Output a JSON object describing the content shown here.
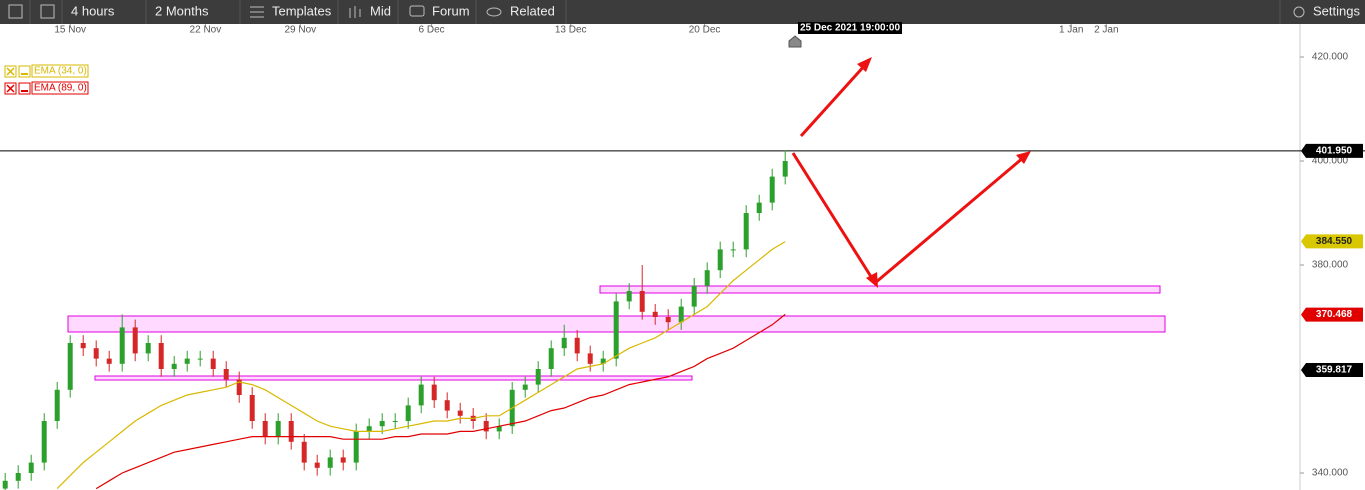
{
  "toolbar": {
    "interval": "4 hours",
    "range": "2 Months",
    "templates": "Templates",
    "price_mode": "Mid",
    "forum": "Forum",
    "related": "Related",
    "settings": "Settings"
  },
  "chart_data": {
    "type": "candlestick",
    "cursor_label": "25 Dec 2021 19:00:00",
    "xlim": [
      -0.4,
      99.6
    ],
    "xticks": [
      {
        "value": 5,
        "label": "15 Nov"
      },
      {
        "value": 15.4,
        "label": "22 Nov"
      },
      {
        "value": 22.7,
        "label": "29 Nov"
      },
      {
        "value": 32.8,
        "label": "6 Dec"
      },
      {
        "value": 43.5,
        "label": "13 Dec"
      },
      {
        "value": 53.8,
        "label": "20 Dec"
      },
      {
        "value": 82,
        "label": "1 Jan"
      },
      {
        "value": 84.7,
        "label": "2 Jan"
      }
    ],
    "ylim": [
      336.73,
      426.35
    ],
    "yticks": [
      {
        "value": 340,
        "label": "340.000"
      },
      {
        "value": 380,
        "label": "380.000"
      },
      {
        "value": 400,
        "label": "400.000"
      },
      {
        "value": 420,
        "label": "420.000"
      }
    ],
    "grid": false,
    "up_color": "#2ca02c",
    "down_color": "#d62728",
    "open": [
      337,
      338.5,
      340,
      342,
      350,
      356,
      365,
      364,
      362,
      361,
      368,
      363,
      365,
      360,
      361,
      362,
      362,
      360,
      358,
      355,
      350,
      347,
      350,
      346,
      342,
      341,
      343,
      342,
      348,
      349,
      350,
      350,
      353,
      357,
      354,
      352,
      351,
      350,
      348,
      349,
      356,
      357,
      360,
      364,
      366,
      363,
      361,
      362,
      373,
      375,
      371,
      370,
      369,
      372,
      376,
      379,
      383,
      383,
      390,
      392,
      397
    ],
    "high": [
      340,
      341.5,
      343.5,
      351.5,
      357.5,
      366.5,
      366.5,
      365.5,
      363.5,
      370.5,
      369.5,
      366.5,
      366.5,
      362.5,
      363.5,
      363.5,
      363.5,
      361.5,
      359.5,
      356.5,
      351.5,
      351.5,
      351.5,
      347.5,
      343.5,
      344.5,
      344.5,
      349.5,
      350.5,
      351.5,
      351.5,
      354.5,
      358.5,
      358.5,
      355.5,
      353.5,
      352.5,
      351.5,
      350.5,
      357.5,
      358.5,
      361.5,
      365.5,
      368.5,
      367.5,
      364.5,
      363.5,
      374.5,
      376.5,
      380,
      372.5,
      371.5,
      373.5,
      377.5,
      380.5,
      384.5,
      384.5,
      391.5,
      393.5,
      398.5,
      402
    ],
    "low": [
      335.5,
      337,
      338.5,
      340.5,
      348.5,
      354.5,
      362.5,
      360.5,
      359.5,
      359.5,
      361.5,
      361.5,
      358.5,
      358.5,
      359.5,
      360.5,
      358.5,
      356.5,
      353.5,
      348.5,
      345.5,
      345.5,
      344.5,
      340.5,
      339.5,
      339.5,
      340.5,
      340.5,
      346.5,
      347.5,
      348.5,
      348.5,
      351.5,
      352.5,
      350.5,
      349.5,
      348.5,
      346.5,
      346.5,
      347.5,
      354.5,
      355.5,
      358.5,
      362.5,
      361.5,
      359.5,
      359.5,
      360.5,
      371.5,
      369.5,
      368.5,
      367.5,
      367.5,
      370.5,
      374.5,
      377.5,
      381.5,
      381.5,
      388.5,
      390.5,
      395.5
    ],
    "close": [
      338.5,
      340,
      342,
      350,
      356,
      365,
      364,
      362,
      361,
      368,
      363,
      365,
      360,
      361,
      362,
      362,
      360,
      358,
      355,
      350,
      347,
      350,
      346,
      342,
      341,
      343,
      342,
      348,
      349,
      350,
      350,
      353,
      357,
      354,
      352,
      351,
      350,
      348,
      349,
      356,
      357,
      360,
      364,
      366,
      363,
      361,
      362,
      373,
      375,
      371,
      370,
      369,
      372,
      376,
      379,
      383,
      383,
      390,
      392,
      397,
      400
    ],
    "series": [
      {
        "name": "EMA (34, 0)",
        "color": "#d9b800",
        "values": [
          null,
          null,
          null,
          null,
          337,
          339.5,
          342,
          344,
          346,
          348,
          350,
          351.5,
          353,
          354,
          355,
          355.5,
          356,
          356.5,
          357.5,
          357,
          356,
          354.5,
          353,
          351.5,
          350,
          349,
          348.5,
          348,
          348,
          348,
          348.5,
          349,
          349.5,
          350,
          350,
          350.5,
          350.5,
          351,
          351,
          352.5,
          354,
          355.5,
          357,
          358.5,
          360,
          360.5,
          361,
          362.5,
          364,
          365,
          366,
          367.5,
          369,
          370.5,
          372,
          374.5,
          377,
          379,
          381,
          383,
          384.5
        ]
      },
      {
        "name": "EMA (89, 0)",
        "color": "#e00000",
        "values": [
          null,
          null,
          null,
          null,
          null,
          null,
          null,
          337,
          338.5,
          340,
          341,
          342,
          343,
          344,
          344.5,
          345,
          345.5,
          346,
          346.5,
          347,
          347,
          347,
          347,
          347,
          347,
          347,
          346.5,
          346.5,
          346.5,
          346.5,
          347,
          347,
          347.5,
          347.5,
          347.5,
          348,
          348,
          348.5,
          349,
          349.5,
          350,
          351,
          352,
          352.5,
          353.5,
          354.5,
          355,
          356,
          357,
          357.5,
          358,
          358.5,
          359.5,
          360.5,
          362,
          363,
          364,
          365.5,
          367,
          368.5,
          370.5
        ]
      }
    ],
    "price_labels": [
      {
        "value": 401.95,
        "label": "401.950",
        "color": "#000000",
        "text_color": "#ffffff"
      },
      {
        "value": 384.55,
        "label": "384.550",
        "color": "#d9c800",
        "text_color": "#222222"
      },
      {
        "value": 370.468,
        "label": "370.468",
        "color": "#e00000",
        "text_color": "#ffffff"
      },
      {
        "value": 359.817,
        "label": "359.817",
        "color": "#000000",
        "text_color": "#ffffff"
      }
    ],
    "price_line": 401.95
  }
}
